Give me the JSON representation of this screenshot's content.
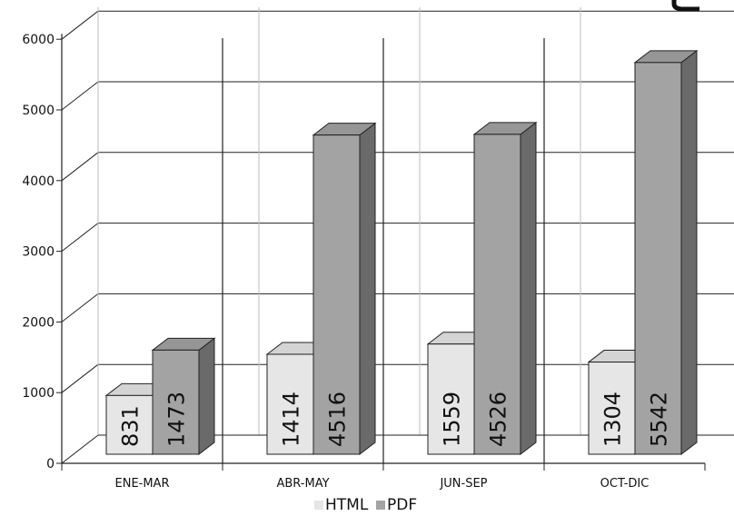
{
  "chart_data": {
    "type": "bar",
    "categories": [
      "ENE-MAR",
      "ABR-MAY",
      "JUN-SEP",
      "OCT-DIC"
    ],
    "series": [
      {
        "name": "HTML",
        "values": [
          831,
          1414,
          1559,
          1304
        ],
        "color": "#e6e6e6"
      },
      {
        "name": "PDF",
        "values": [
          1473,
          4516,
          4526,
          5542
        ],
        "color": "#a3a3a3"
      }
    ],
    "ylim": [
      0,
      6000
    ],
    "yticks": [
      "0",
      "1000",
      "2000",
      "3000",
      "4000",
      "5000",
      "6000"
    ],
    "grid": true,
    "legend_position": "bottom-center",
    "style": "3d"
  }
}
